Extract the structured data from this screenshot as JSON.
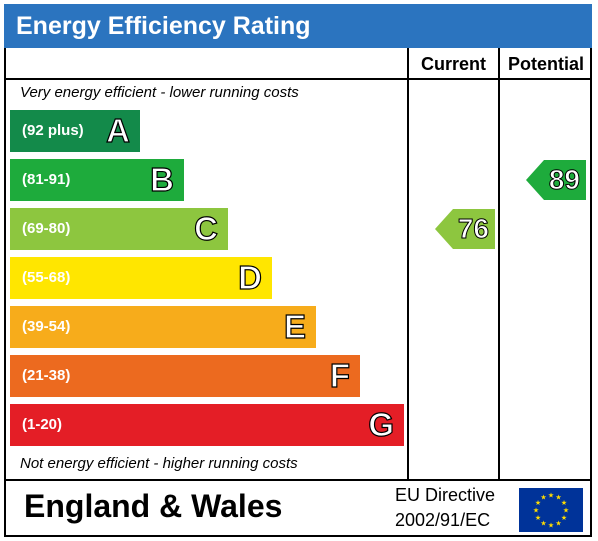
{
  "header": {
    "title": "Energy Efficiency Rating"
  },
  "columns": {
    "current": "Current",
    "potential": "Potential"
  },
  "captions": {
    "top": "Very energy efficient - lower running costs",
    "bottom": "Not energy efficient - higher running costs"
  },
  "footer": {
    "region": "England & Wales",
    "directive_line1": "EU Directive",
    "directive_line2": "2002/91/EC"
  },
  "colors": {
    "title_bar": "#2b74bf",
    "A": "#138a4a",
    "B": "#1eab3c",
    "C": "#8dc63f",
    "D": "#ffe600",
    "E": "#f7ac1b",
    "F": "#ec6a1f",
    "G": "#e41e26",
    "flag_blue": "#003399",
    "flag_star": "#ffdd00"
  },
  "icons": {
    "flag": "eu-flag-icon"
  },
  "chart_data": {
    "type": "bar",
    "title": "Energy Efficiency Rating",
    "categories": [
      "A",
      "B",
      "C",
      "D",
      "E",
      "F",
      "G"
    ],
    "ranges": [
      "(92 plus)",
      "(81-91)",
      "(69-80)",
      "(55-68)",
      "(39-54)",
      "(21-38)",
      "(1-20)"
    ],
    "current": {
      "value": "76",
      "band": "C"
    },
    "potential": {
      "value": "89",
      "band": "B"
    }
  }
}
